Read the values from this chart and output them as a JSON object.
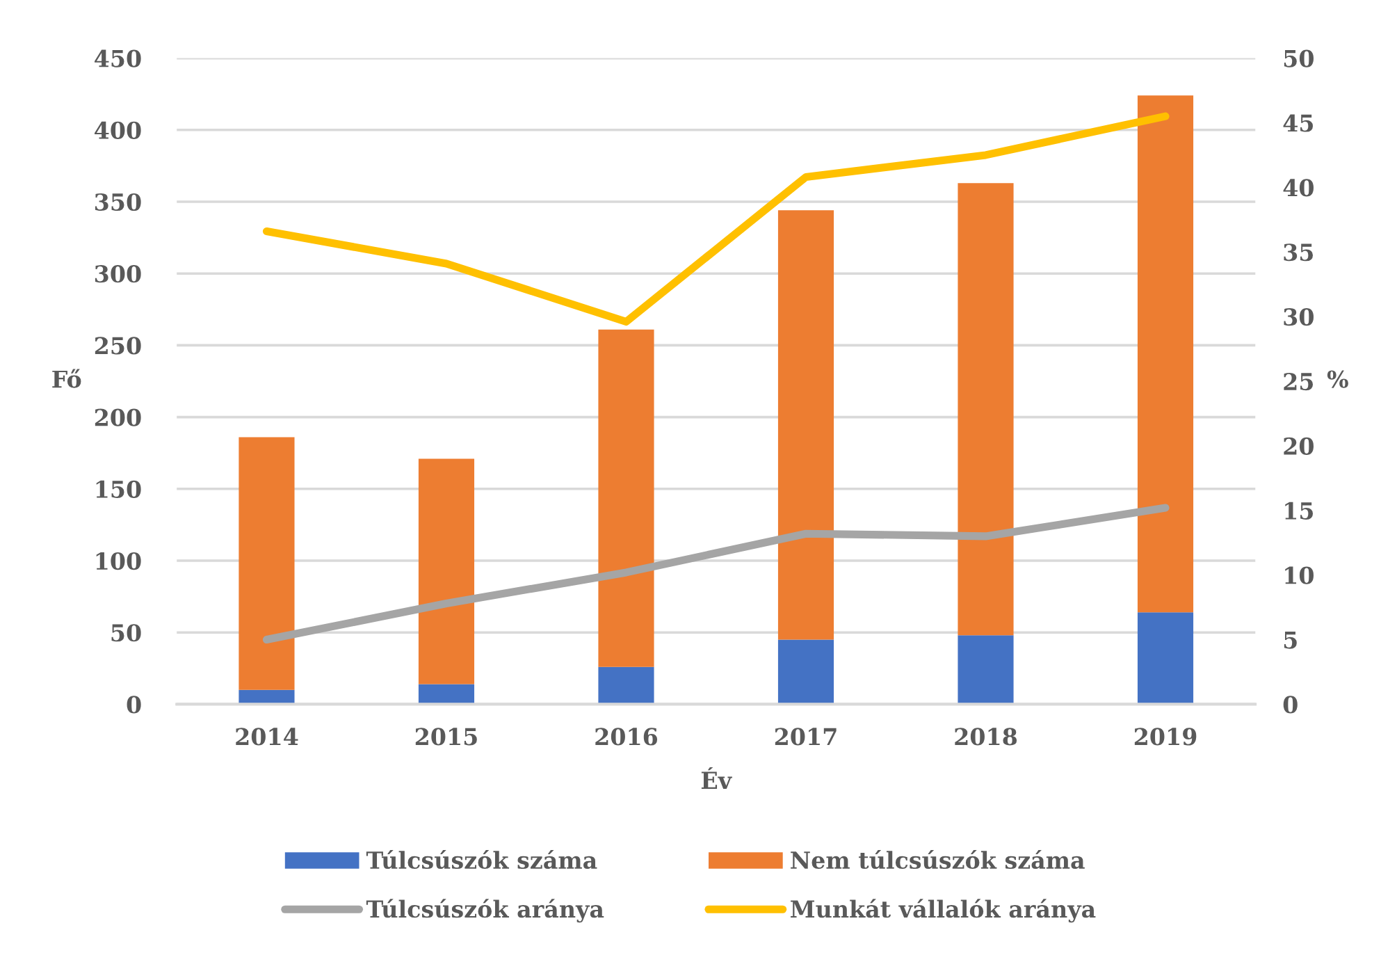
{
  "chart_data": {
    "type": "bar",
    "stacked": true,
    "categories": [
      "2014",
      "2015",
      "2016",
      "2017",
      "2018",
      "2019"
    ],
    "series": [
      {
        "name": "Túlcsúszók száma",
        "color": "#4472c4",
        "values": [
          10,
          14,
          26,
          45,
          48,
          64
        ]
      },
      {
        "name": "Nem túlcsúszók száma",
        "color": "#ed7d31",
        "values": [
          176,
          157,
          235,
          299,
          315,
          360
        ]
      },
      {
        "name": "Túlcsúszók aránya",
        "type": "line",
        "axis": "y2",
        "color": "#a5a5a5",
        "values": [
          5.0,
          7.8,
          10.2,
          13.2,
          13.0,
          15.2
        ]
      },
      {
        "name": "Munkát vállalók aránya",
        "type": "line",
        "axis": "y2",
        "color": "#ffc000",
        "values": [
          36.6,
          34.1,
          29.6,
          40.8,
          42.5,
          45.5
        ]
      }
    ],
    "xlabel": "Év",
    "ylabel": "Fő",
    "y2label": "%",
    "ylim": [
      0,
      450
    ],
    "yticks": [
      0,
      50,
      100,
      150,
      200,
      250,
      300,
      350,
      400,
      450
    ],
    "y2lim": [
      0,
      50
    ],
    "y2ticks": [
      0,
      5,
      10,
      15,
      20,
      25,
      30,
      35,
      40,
      45,
      50
    ],
    "grid": "y",
    "legend": "bottom"
  }
}
